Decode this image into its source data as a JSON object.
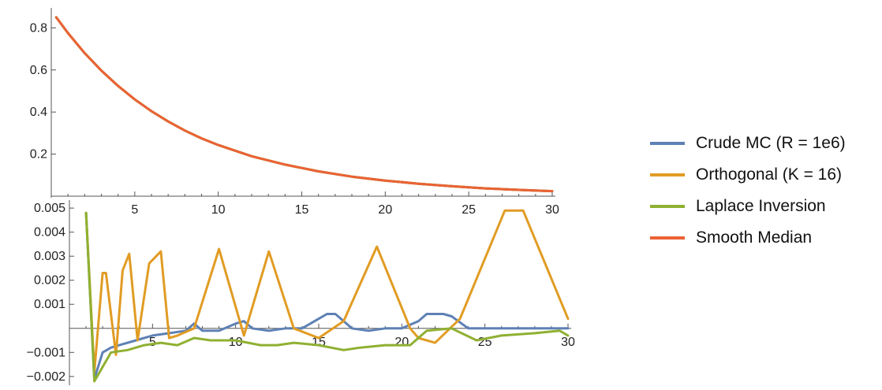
{
  "chart_data": [
    {
      "type": "line",
      "xlim": [
        0,
        30
      ],
      "ylim": [
        0,
        0.88
      ],
      "x_ticks": [
        "5",
        "10",
        "15",
        "20",
        "25",
        "30"
      ],
      "y_ticks": [
        "0.2",
        "0.4",
        "0.6",
        "0.8"
      ],
      "x": [
        0.3,
        1,
        2,
        3,
        4,
        5,
        6,
        7,
        8,
        9,
        10,
        12,
        14,
        16,
        18,
        20,
        22,
        24,
        26,
        28,
        30
      ],
      "series": [
        {
          "name": "Crude MC (R = 1e6)",
          "color": "#5e81b5",
          "values": [
            0.85,
            0.775,
            0.68,
            0.597,
            0.524,
            0.46,
            0.404,
            0.355,
            0.312,
            0.275,
            0.243,
            0.19,
            0.15,
            0.118,
            0.093,
            0.074,
            0.059,
            0.047,
            0.037,
            0.03,
            0.024
          ]
        },
        {
          "name": "Orthogonal (K = 16)",
          "color": "#e19c24",
          "values": [
            0.85,
            0.775,
            0.68,
            0.597,
            0.524,
            0.46,
            0.404,
            0.355,
            0.312,
            0.275,
            0.243,
            0.19,
            0.15,
            0.118,
            0.093,
            0.074,
            0.059,
            0.047,
            0.037,
            0.03,
            0.024
          ]
        },
        {
          "name": "Laplace Inversion",
          "color": "#8fb032",
          "values": [
            0.85,
            0.775,
            0.68,
            0.597,
            0.524,
            0.46,
            0.404,
            0.355,
            0.312,
            0.275,
            0.243,
            0.19,
            0.15,
            0.118,
            0.093,
            0.074,
            0.059,
            0.047,
            0.037,
            0.03,
            0.024
          ]
        },
        {
          "name": "Smooth Median",
          "color": "#eb6235",
          "values": [
            0.85,
            0.775,
            0.68,
            0.597,
            0.524,
            0.46,
            0.404,
            0.355,
            0.312,
            0.275,
            0.243,
            0.19,
            0.15,
            0.118,
            0.093,
            0.074,
            0.059,
            0.047,
            0.037,
            0.03,
            0.024
          ]
        }
      ]
    },
    {
      "type": "line",
      "xlim": [
        0,
        30
      ],
      "ylim": [
        -0.0023,
        0.0052
      ],
      "x_ticks": [
        "5",
        "10",
        "15",
        "20",
        "25",
        "30"
      ],
      "y_ticks": [
        "−0.002",
        "−0.001",
        "0.001",
        "0.002",
        "0.003",
        "0.004",
        "0.005"
      ],
      "series": [
        {
          "name": "Crude MC (R = 1e6)",
          "color": "#5e81b5",
          "x": [
            1.0,
            1.5,
            2.0,
            2.5,
            3.0,
            4.0,
            5.0,
            6.0,
            7.0,
            7.5,
            8.0,
            9.0,
            10.0,
            10.5,
            11.0,
            12.0,
            13.0,
            14.0,
            15.0,
            15.5,
            16.0,
            17.0,
            18.0,
            19.0,
            20.0,
            21.0,
            21.5,
            22.5,
            23.0,
            24.0,
            25.0,
            30.0
          ],
          "values": [
            0.0048,
            -0.0021,
            -0.001,
            -0.0008,
            -0.0007,
            -0.0005,
            -0.0003,
            -0.0002,
            -0.0001,
            0.0002,
            -0.0001,
            -0.0001,
            0.0002,
            0.0003,
            0.0,
            -0.0001,
            0.0,
            0.0,
            0.0004,
            0.0006,
            0.0006,
            0.0,
            -0.0001,
            0.0,
            0.0,
            0.0003,
            0.0006,
            0.0006,
            0.0005,
            0.0,
            0.0,
            0.0
          ]
        },
        {
          "name": "Orthogonal (K = 16)",
          "color": "#e19c24",
          "x": [
            1.0,
            1.5,
            2.0,
            2.2,
            2.8,
            3.2,
            3.6,
            4.1,
            4.8,
            5.5,
            6.0,
            6.5,
            7.5,
            9.0,
            10.5,
            12.0,
            13.5,
            15.0,
            16.5,
            18.5,
            20.5,
            21.0,
            22.0,
            23.5,
            26.2,
            27.3,
            30.0
          ],
          "values": [
            0.0048,
            -0.0018,
            0.0023,
            0.0023,
            -0.0011,
            0.0024,
            0.0031,
            -0.0005,
            0.0027,
            0.0032,
            -0.0004,
            -0.0003,
            0.0,
            0.0033,
            -0.0003,
            0.0032,
            0.0,
            -0.0004,
            0.0003,
            0.0034,
            0.0,
            -0.0004,
            -0.0006,
            0.0004,
            0.0049,
            0.0049,
            0.0004
          ]
        },
        {
          "name": "Laplace Inversion",
          "color": "#8fb032",
          "x": [
            1.0,
            1.5,
            2.5,
            3.5,
            4.5,
            5.5,
            6.5,
            7.5,
            8.5,
            10.0,
            11.5,
            12.5,
            13.5,
            15.0,
            16.5,
            17.5,
            19.0,
            20.5,
            21.5,
            23.0,
            24.5,
            26.0,
            28.0,
            29.5,
            30.0
          ],
          "values": [
            0.0048,
            -0.0022,
            -0.001,
            -0.0009,
            -0.0007,
            -0.0006,
            -0.0007,
            -0.0004,
            -0.0005,
            -0.0005,
            -0.0007,
            -0.0007,
            -0.0006,
            -0.0007,
            -0.0009,
            -0.0008,
            -0.0007,
            -0.0007,
            -0.0001,
            0.0,
            -0.0005,
            -0.0003,
            -0.0002,
            -0.0001,
            -0.0003
          ]
        },
        {
          "name": "Smooth Median",
          "color": "#eb6235",
          "x": [],
          "values": []
        }
      ]
    }
  ],
  "legend": [
    {
      "label": "Crude MC (R = 1e6)",
      "color": "#5e81b5"
    },
    {
      "label": "Orthogonal (K = 16)",
      "color": "#e19c24"
    },
    {
      "label": "Laplace Inversion",
      "color": "#8fb032"
    },
    {
      "label": "Smooth Median",
      "color": "#eb6235"
    }
  ]
}
